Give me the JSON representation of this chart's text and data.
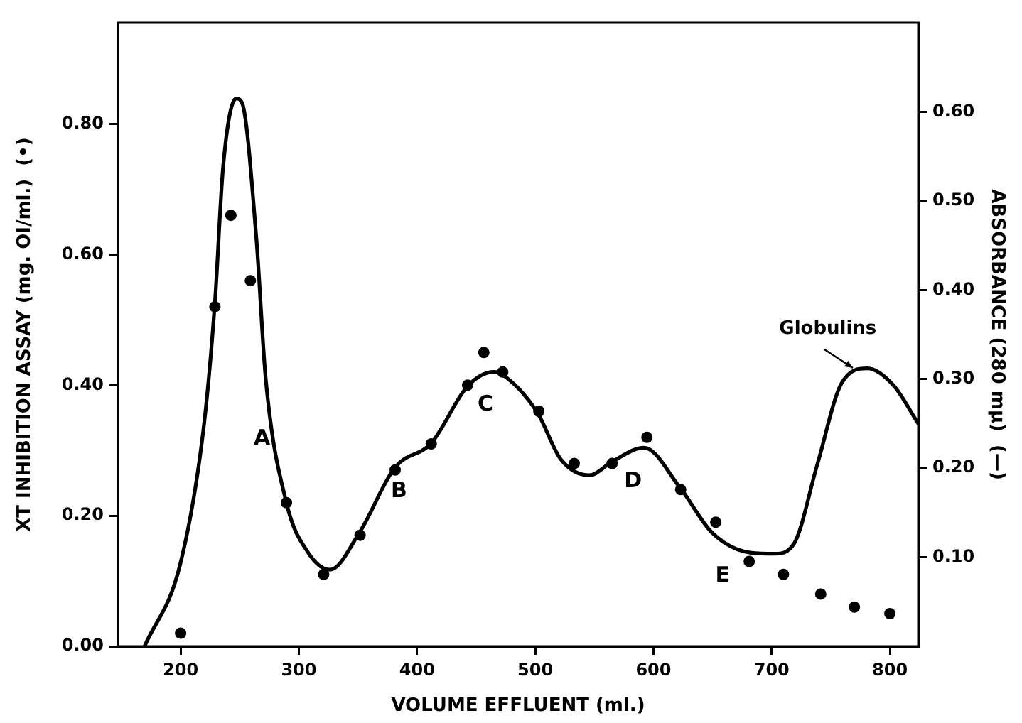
{
  "chart_data": {
    "type": "line",
    "xlabel": "VOLUME EFFLUENT (ml.)",
    "ylabel": "XT INHIBITION ASSAY (mg. OI/ml.)  (•)",
    "y2label": "ABSORBANCE (280 mμ)  (—)",
    "xlim": [
      147,
      824
    ],
    "xticks": [
      200,
      300,
      400,
      500,
      600,
      700,
      800
    ],
    "ylim": [
      0,
      0.955
    ],
    "yticks": [
      {
        "value": 0,
        "label": "0.00"
      },
      {
        "value": 0.2,
        "label": "0.20"
      },
      {
        "value": 0.4,
        "label": "0.40"
      },
      {
        "value": 0.6,
        "label": "0.60"
      },
      {
        "value": 0.8,
        "label": "0.80"
      }
    ],
    "y2lim": [
      0,
      0.7
    ],
    "y2ticks": [
      {
        "value": 0.1,
        "label": "0.10"
      },
      {
        "value": 0.2,
        "label": "0.20"
      },
      {
        "value": 0.3,
        "label": "0.30"
      },
      {
        "value": 0.4,
        "label": "0.40"
      },
      {
        "value": 0.5,
        "label": "0.50"
      },
      {
        "value": 0.6,
        "label": "0.60"
      }
    ],
    "grid": false,
    "legend": false,
    "series": [
      {
        "type": "line",
        "axis": "y2",
        "color": "#000000",
        "marker": "none",
        "line_style": "solid",
        "x": [
          169.5,
          200,
          219.7,
          229,
          236,
          247,
          252,
          264,
          272,
          289.5,
          308,
          326.4,
          351,
          381.5,
          412,
          442.8,
          465,
          471,
          501.5,
          521.6,
          545.7,
          565.8,
          592,
          622,
          650,
          682.6,
          702.6,
          718.8,
          738.8,
          759,
          781,
          803,
          824
        ],
        "values": [
          0,
          0.094,
          0.248,
          0.386,
          0.539,
          0.615,
          0.61,
          0.459,
          0.3,
          0.161,
          0.105,
          0.086,
          0.127,
          0.201,
          0.228,
          0.292,
          0.308,
          0.306,
          0.263,
          0.21,
          0.192,
          0.208,
          0.223,
          0.179,
          0.127,
          0.105,
          0.104,
          0.115,
          0.205,
          0.295,
          0.312,
          0.293,
          0.25
        ]
      },
      {
        "type": "scatter",
        "color": "#000000",
        "marker": "circle",
        "x": [
          200,
          229,
          242.5,
          259,
          289.5,
          321,
          351.8,
          381.5,
          412,
          442.8,
          456.5,
          472.5,
          503,
          533,
          565,
          594.5,
          623,
          652.7,
          681,
          710,
          741.5,
          770,
          800
        ],
        "values": [
          0.02,
          0.52,
          0.66,
          0.56,
          0.22,
          0.11,
          0.17,
          0.27,
          0.31,
          0.4,
          0.45,
          0.42,
          0.36,
          0.28,
          0.28,
          0.32,
          0.24,
          0.19,
          0.13,
          0.11,
          0.08,
          0.06,
          0.05
        ]
      }
    ],
    "annotations": [
      {
        "text": "A",
        "x": 276,
        "y": 0.367
      },
      {
        "text": "B",
        "x": 392,
        "y": 0.287
      },
      {
        "text": "C",
        "x": 465,
        "y": 0.42
      },
      {
        "text": "D",
        "x": 590,
        "y": 0.302
      },
      {
        "text": "E",
        "x": 665.7,
        "y": 0.157
      },
      {
        "text": "Globulins",
        "x": 780,
        "y": 0.425
      }
    ]
  }
}
